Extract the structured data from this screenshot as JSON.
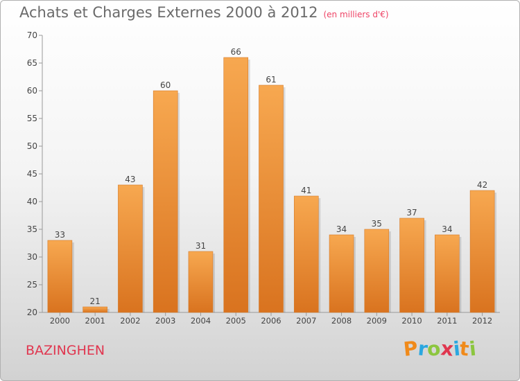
{
  "chart_data": {
    "type": "bar",
    "title": "Achats et Charges Externes 2000 à 2012",
    "subtitle": "(en milliers d'€)",
    "categories": [
      "2000",
      "2001",
      "2002",
      "2003",
      "2004",
      "2005",
      "2006",
      "2007",
      "2008",
      "2009",
      "2010",
      "2011",
      "2012"
    ],
    "values": [
      33,
      21,
      43,
      60,
      31,
      66,
      61,
      41,
      34,
      35,
      37,
      34,
      42
    ],
    "ylim": [
      20,
      70
    ],
    "yticks": [
      20,
      25,
      30,
      35,
      40,
      45,
      50,
      55,
      60,
      65,
      70
    ],
    "grid": false,
    "bar_color_light": "#f7a850",
    "bar_color_dark": "#d9731f"
  },
  "footer": {
    "place": "BAZINGHEN",
    "logo_letters": [
      "P",
      "r",
      "o",
      "x",
      "i",
      "t",
      "i"
    ],
    "logo_colors": [
      "#f08a1a",
      "#2aa7e0",
      "#8cc63f",
      "#e0364f",
      "#2aa7e0",
      "#f08a1a",
      "#8cc63f"
    ]
  }
}
